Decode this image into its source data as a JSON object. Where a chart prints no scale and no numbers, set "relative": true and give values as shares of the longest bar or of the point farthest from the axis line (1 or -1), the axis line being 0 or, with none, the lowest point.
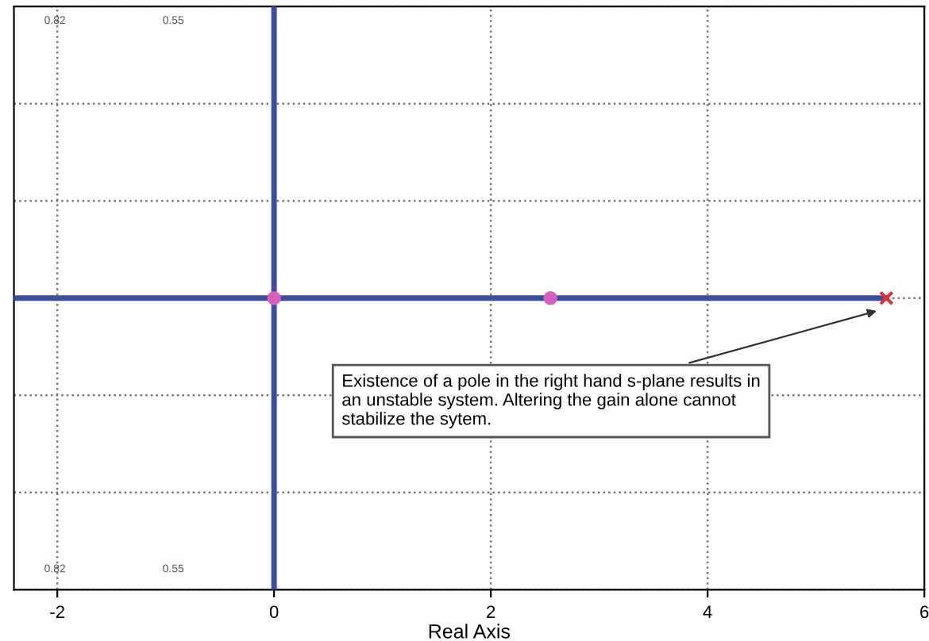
{
  "chart_data": {
    "type": "line",
    "relative": true,
    "xlabel": "Real Axis",
    "xlim": [
      -2.4,
      6
    ],
    "xticks": [
      -2,
      0,
      2,
      4,
      6
    ],
    "grid": true,
    "tick_labels": "x",
    "series": [
      {
        "color": "#3b4ea3",
        "x": [
          -2.4,
          5.65
        ],
        "values": [
          0,
          0
        ]
      },
      {
        "color": "#3b4ea3",
        "x": [
          0,
          0
        ],
        "values": [
          -1,
          1
        ]
      },
      {
        "type": "scatter",
        "color": "#d85fc0",
        "marker": "circle",
        "x": [
          0,
          2.55
        ],
        "values": [
          0,
          0
        ]
      },
      {
        "type": "scatter",
        "color": "#e03030",
        "marker": "cross",
        "x": [
          5.65
        ],
        "values": [
          0
        ]
      }
    ],
    "annotations": [
      {
        "text": "Existence of a pole in the right hand s-plane results in an unstable system. Altering the gain alone cannot stabilize the sytem.",
        "x": 5.6,
        "y": -0.04
      },
      "0.82",
      "0.55",
      "0.82",
      "0.55"
    ]
  }
}
